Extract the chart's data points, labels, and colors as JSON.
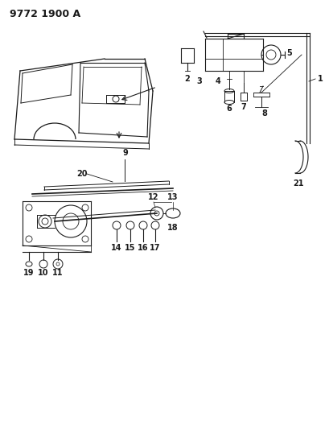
{
  "title": "9772 1900 A",
  "bg_color": "#ffffff",
  "line_color": "#1a1a1a",
  "title_fontsize": 9,
  "label_fontsize": 7,
  "fig_width": 4.1,
  "fig_height": 5.33,
  "dpi": 100
}
